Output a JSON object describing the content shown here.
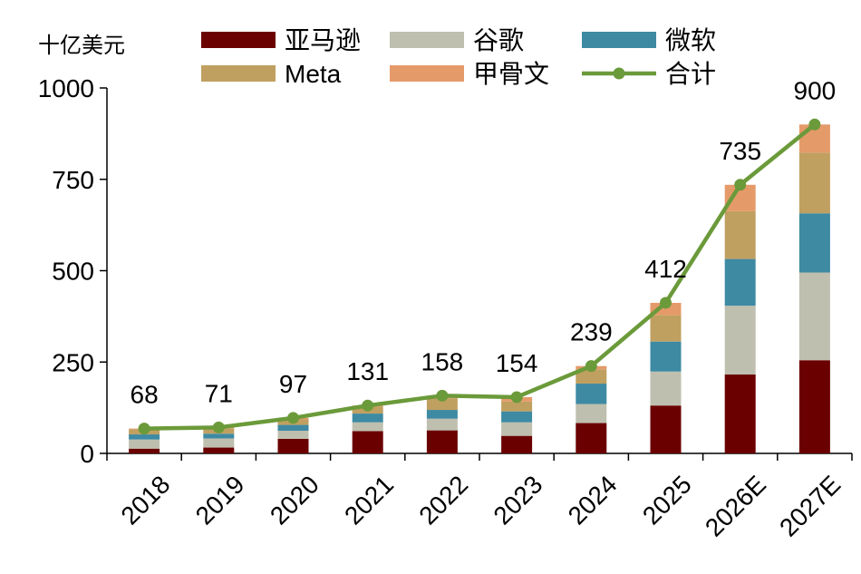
{
  "chart_data": {
    "type": "bar",
    "stacked": true,
    "unit_label": "十亿美元",
    "categories": [
      "2018",
      "2019",
      "2020",
      "2021",
      "2022",
      "2023",
      "2024",
      "2025",
      "2026E",
      "2027E"
    ],
    "ylim": [
      0,
      1000
    ],
    "yticks": [
      0,
      250,
      500,
      750,
      1000
    ],
    "grid": false,
    "legend_position": "top",
    "series": [
      {
        "name": "亚马逊",
        "color": "#6B0000",
        "values": [
          13,
          16,
          40,
          61,
          63,
          48,
          83,
          131,
          216,
          255
        ]
      },
      {
        "name": "谷歌",
        "color": "#BFBFAF",
        "values": [
          25,
          25,
          22,
          24,
          32,
          37,
          52,
          93,
          188,
          240
        ]
      },
      {
        "name": "微软",
        "color": "#3E8AA3",
        "values": [
          14,
          13,
          16,
          24,
          24,
          30,
          56,
          82,
          128,
          162
        ]
      },
      {
        "name": "Meta",
        "color": "#C0A060",
        "values": [
          14,
          15,
          15,
          19,
          32,
          27,
          39,
          72,
          131,
          166
        ]
      },
      {
        "name": "甲骨文",
        "color": "#E59A6A",
        "values": [
          2,
          2,
          4,
          3,
          7,
          12,
          9,
          34,
          72,
          77
        ]
      }
    ],
    "total": {
      "name": "合计",
      "color": "#6B9A3A",
      "values": [
        68,
        71,
        97,
        131,
        158,
        154,
        239,
        412,
        735,
        900
      ],
      "labels": [
        "68",
        "71",
        "97",
        "131",
        "158",
        "154",
        "239",
        "412",
        "735",
        "900"
      ]
    }
  }
}
